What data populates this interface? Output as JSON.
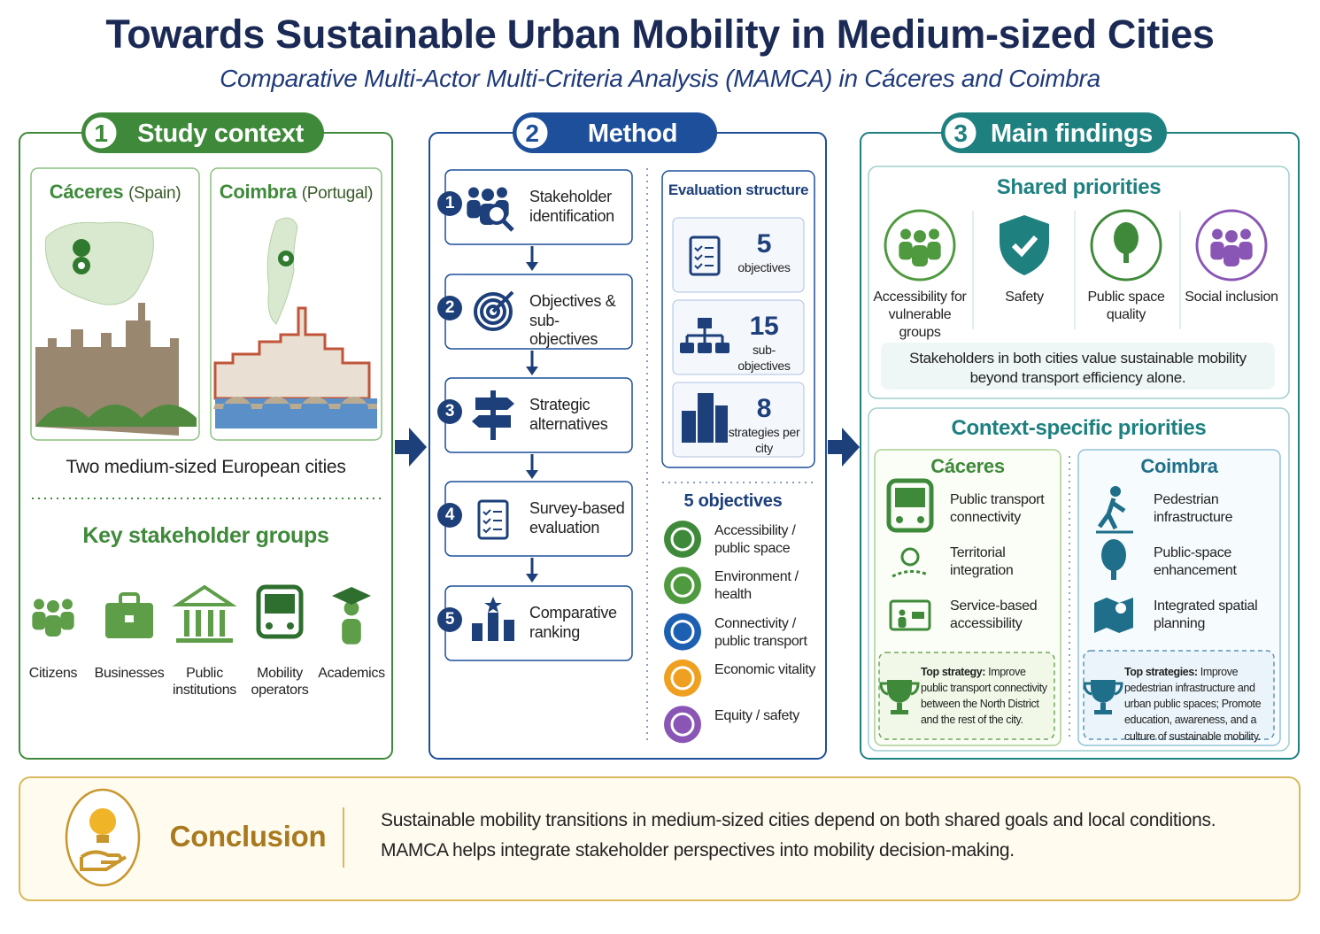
{
  "header": {
    "title": "Towards Sustainable Urban Mobility in Medium-sized Cities",
    "subtitle": "Comparative Multi-Actor Multi-Criteria Analysis (MAMCA) in Cáceres and Coimbra"
  },
  "study_context": {
    "number": 1,
    "title": "Study context",
    "cities": [
      {
        "name": "Cáceres",
        "country": "(Spain)"
      },
      {
        "name": "Coimbra",
        "country": "(Portugal)"
      }
    ],
    "caption": "Two medium-sized European cities",
    "stakeholders_title": "Key stakeholder groups",
    "stakeholders": [
      "Citizens",
      "Businesses",
      "Public institutions",
      "Mobility operators",
      "Academics"
    ]
  },
  "method": {
    "number": 2,
    "title": "Method",
    "steps": [
      {
        "number": 1,
        "label": "Stakeholder identification"
      },
      {
        "number": 2,
        "label": "Objectives & sub-objectives"
      },
      {
        "number": 3,
        "label": "Strategic alternatives"
      },
      {
        "number": 4,
        "label": "Survey-based evaluation"
      },
      {
        "number": 5,
        "label": "Comparative ranking"
      }
    ],
    "evaluation": {
      "title": "Evaluation structure",
      "items": [
        {
          "value": 5,
          "label": "objectives"
        },
        {
          "value": 15,
          "label": "sub-objectives"
        },
        {
          "value": 8,
          "label": "strategies per city"
        }
      ]
    },
    "objectives_title": "5 objectives",
    "objectives": [
      "Accessibility / public space",
      "Environment / health",
      "Connectivity / public transport",
      "Economic vitality",
      "Equity / safety"
    ]
  },
  "main_findings": {
    "number": 3,
    "title": "Main findings",
    "shared_title": "Shared priorities",
    "shared": [
      "Accessibility for vulnerable groups",
      "Safety",
      "Public space quality",
      "Social inclusion"
    ],
    "shared_note": "Stakeholders in both cities value sustainable mobility beyond transport efficiency alone.",
    "context_title": "Context-specific priorities",
    "cities": [
      {
        "name": "Cáceres",
        "priorities": [
          "Public transport connectivity",
          "Territorial integration",
          "Service-based accessibility"
        ],
        "strategy_label": "Top strategy:",
        "strategy": "Improve public transport connectivity between the North District and the rest of the city."
      },
      {
        "name": "Coimbra",
        "priorities": [
          "Pedestrian infrastructure",
          "Public-space enhancement",
          "Integrated spatial planning"
        ],
        "strategy_label": "Top strategies:",
        "strategy": "Improve pedestrian infrastructure and urban public spaces; Promote education, awareness, and a culture of sustainable mobility."
      }
    ]
  },
  "conclusion": {
    "title": "Conclusion",
    "lines": [
      "Sustainable mobility transitions in medium-sized cities depend on both shared goals and local conditions.",
      "MAMCA helps integrate stakeholder perspectives into mobility decision-making."
    ]
  }
}
